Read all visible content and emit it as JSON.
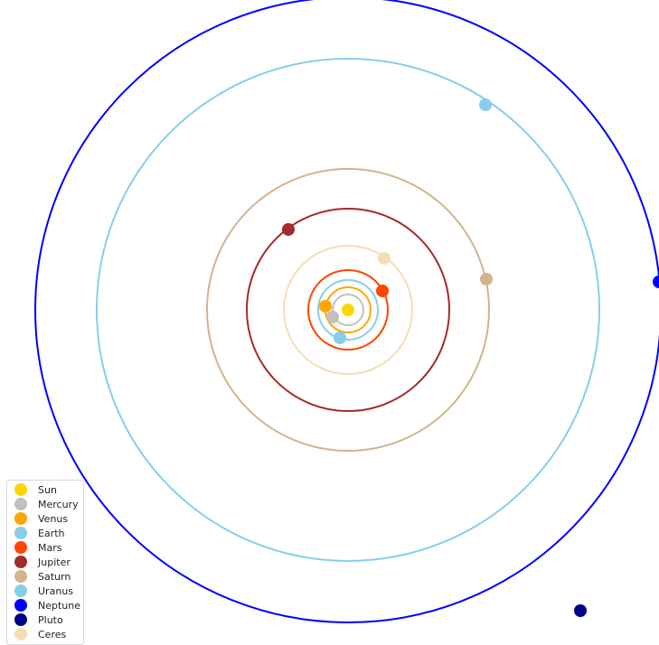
{
  "bodies": [
    {
      "name": "Sun",
      "color": "#FFD700"
    },
    {
      "name": "Mercury",
      "color": "#C0C0C0"
    },
    {
      "name": "Venus",
      "color": "#FFA500"
    },
    {
      "name": "Earth",
      "color": "#87CEEB"
    },
    {
      "name": "Mars",
      "color": "#FF4500"
    },
    {
      "name": "Jupiter",
      "color": "#A52A2A"
    },
    {
      "name": "Saturn",
      "color": "#D2B48C"
    },
    {
      "name": "Uranus",
      "color": "#87CEEB"
    },
    {
      "name": "Neptune",
      "color": "#0000FF"
    },
    {
      "name": "Pluto",
      "color": "#00008B"
    },
    {
      "name": "Ceres",
      "color": "#F5DEB3"
    }
  ]
}
